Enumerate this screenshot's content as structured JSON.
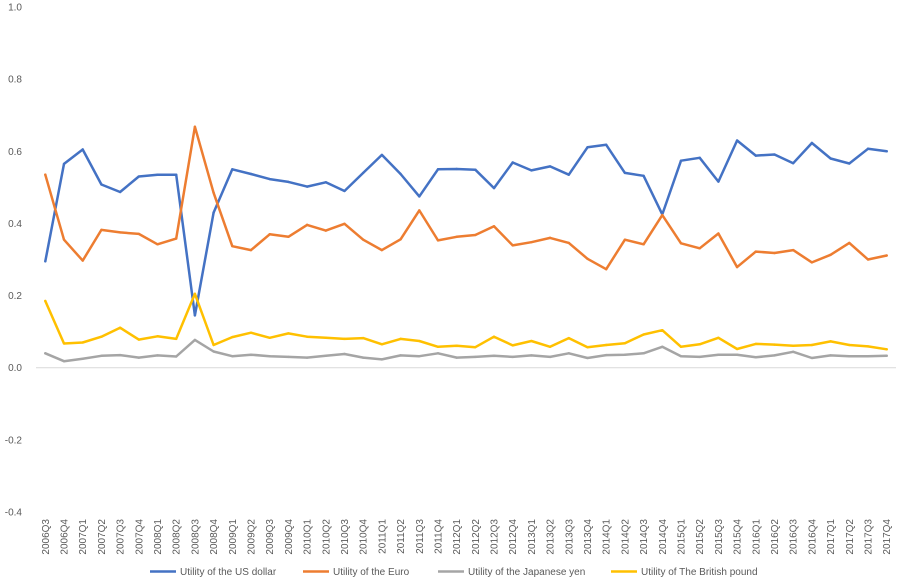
{
  "chart_data": {
    "type": "line",
    "title": "",
    "xlabel": "",
    "ylabel": "",
    "ylim": [
      -0.4,
      1.0
    ],
    "yticks": [
      "1.0",
      "0.8",
      "0.6",
      "0.4",
      "0.2",
      "0.0",
      "-0.2",
      "-0.4"
    ],
    "grid": false,
    "legend_position": "bottom",
    "categories": [
      "2006Q3",
      "2006Q4",
      "2007Q1",
      "2007Q2",
      "2007Q3",
      "2007Q4",
      "2008Q1",
      "2008Q2",
      "2008Q3",
      "2008Q4",
      "2009Q1",
      "2009Q2",
      "2009Q3",
      "2009Q4",
      "2010Q1",
      "2010Q2",
      "2010Q3",
      "2010Q4",
      "2011Q1",
      "2011Q2",
      "2011Q3",
      "2011Q4",
      "2012Q1",
      "2012Q2",
      "2012Q3",
      "2012Q4",
      "2013Q1",
      "2013Q2",
      "2013Q3",
      "2013Q4",
      "2014Q1",
      "2014Q2",
      "2014Q3",
      "2014Q4",
      "2015Q1",
      "2015Q2",
      "2015Q3",
      "2015Q4",
      "2016Q1",
      "2016Q2",
      "2016Q3",
      "2016Q4",
      "2017Q1",
      "2017Q2",
      "2017Q3",
      "2017Q4"
    ],
    "series": [
      {
        "name": "Utility of the US dollar",
        "color": "#4472C4",
        "values": [
          0.295,
          0.565,
          0.605,
          0.508,
          0.487,
          0.53,
          0.535,
          0.535,
          0.145,
          0.43,
          0.55,
          0.537,
          0.523,
          0.515,
          0.502,
          0.514,
          0.49,
          0.54,
          0.59,
          0.537,
          0.475,
          0.55,
          0.551,
          0.549,
          0.498,
          0.569,
          0.547,
          0.558,
          0.535,
          0.611,
          0.618,
          0.54,
          0.532,
          0.425,
          0.574,
          0.582,
          0.516,
          0.63,
          0.588,
          0.591,
          0.567,
          0.623,
          0.58,
          0.566,
          0.607,
          0.6
        ]
      },
      {
        "name": "Utility of the Euro",
        "color": "#ED7D31",
        "values": [
          0.535,
          0.355,
          0.297,
          0.382,
          0.375,
          0.371,
          0.342,
          0.358,
          0.668,
          0.485,
          0.337,
          0.326,
          0.37,
          0.363,
          0.396,
          0.38,
          0.399,
          0.355,
          0.326,
          0.356,
          0.436,
          0.353,
          0.363,
          0.368,
          0.392,
          0.339,
          0.348,
          0.36,
          0.346,
          0.302,
          0.273,
          0.355,
          0.342,
          0.423,
          0.345,
          0.331,
          0.372,
          0.279,
          0.322,
          0.318,
          0.326,
          0.292,
          0.313,
          0.346,
          0.3,
          0.311
        ]
      },
      {
        "name": "Utility of the Japanese yen",
        "color": "#A5A5A5",
        "values": [
          0.04,
          0.018,
          0.025,
          0.033,
          0.035,
          0.028,
          0.034,
          0.031,
          0.077,
          0.045,
          0.032,
          0.036,
          0.032,
          0.03,
          0.028,
          0.033,
          0.038,
          0.028,
          0.023,
          0.034,
          0.032,
          0.04,
          0.028,
          0.03,
          0.033,
          0.03,
          0.034,
          0.03,
          0.04,
          0.027,
          0.035,
          0.036,
          0.04,
          0.058,
          0.032,
          0.03,
          0.036,
          0.036,
          0.029,
          0.034,
          0.044,
          0.027,
          0.034,
          0.032,
          0.032,
          0.033
        ]
      },
      {
        "name": "Utility of The British pound",
        "color": "#FFC000",
        "values": [
          0.185,
          0.067,
          0.07,
          0.086,
          0.111,
          0.078,
          0.087,
          0.08,
          0.205,
          0.063,
          0.085,
          0.097,
          0.083,
          0.095,
          0.086,
          0.083,
          0.08,
          0.082,
          0.065,
          0.08,
          0.074,
          0.058,
          0.061,
          0.057,
          0.086,
          0.062,
          0.074,
          0.058,
          0.082,
          0.057,
          0.063,
          0.068,
          0.092,
          0.104,
          0.058,
          0.065,
          0.083,
          0.052,
          0.066,
          0.064,
          0.061,
          0.063,
          0.073,
          0.063,
          0.059,
          0.051
        ]
      }
    ]
  }
}
